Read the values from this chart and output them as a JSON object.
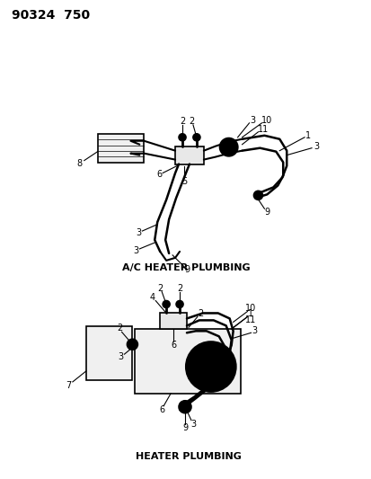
{
  "title_ref": "90324  750",
  "background_color": "#ffffff",
  "line_color": "#000000",
  "label1": "A/C HEATER PLUMBING",
  "label2": "HEATER PLUMBING",
  "fig_width": 4.14,
  "fig_height": 5.33,
  "dpi": 100
}
